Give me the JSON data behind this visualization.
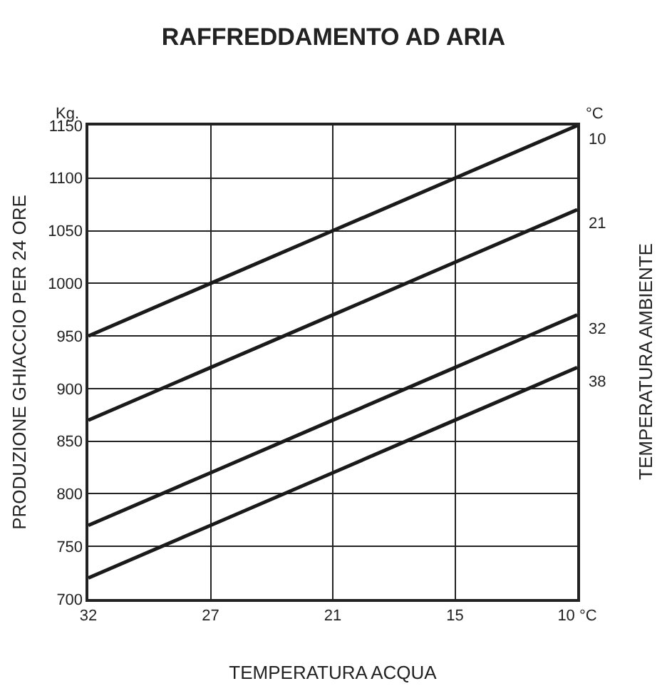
{
  "chart_data": {
    "type": "line",
    "title": "RAFFREDDAMENTO AD ARIA",
    "xlabel": "TEMPERATURA ACQUA",
    "ylabel": "PRODUZIONE GHIACCIO PER 24 ORE",
    "y2label": "TEMPERATURA AMBIENTE",
    "categories": [
      "32",
      "27",
      "21",
      "15",
      "10 °C"
    ],
    "series": [
      {
        "name": "10",
        "color": "#1a1a1a",
        "values": [
          950,
          1000,
          1050,
          1100,
          1150
        ]
      },
      {
        "name": "21",
        "color": "#1a1a1a",
        "values": [
          870,
          920,
          970,
          1020,
          1070
        ]
      },
      {
        "name": "32",
        "color": "#1a1a1a",
        "values": [
          770,
          820,
          870,
          920,
          970
        ]
      },
      {
        "name": "38",
        "color": "#1a1a1a",
        "values": [
          720,
          770,
          820,
          870,
          920
        ]
      }
    ],
    "legend_title": "°C",
    "annotations": [
      "Kg."
    ],
    "ylim": [
      700,
      1150
    ],
    "yticks": [
      700,
      750,
      800,
      850,
      900,
      950,
      1000,
      1050,
      1100,
      1150
    ],
    "grid": true,
    "legend": false,
    "marker": "none",
    "line_style": "solid"
  }
}
